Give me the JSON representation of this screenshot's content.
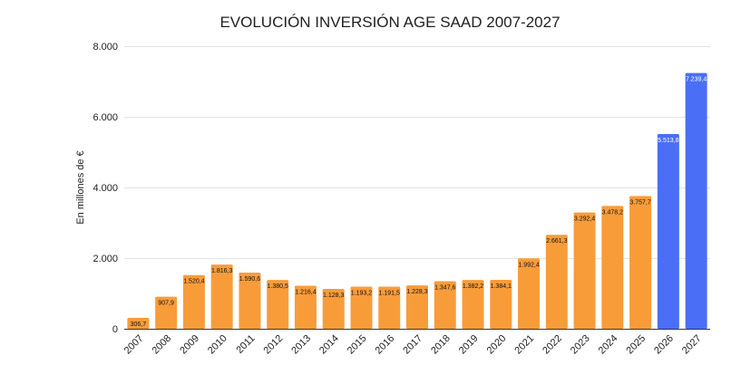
{
  "chart_data": {
    "type": "bar",
    "title": "EVOLUCIÓN INVERSIÓN AGE SAAD 2007-2027",
    "xlabel": "",
    "ylabel": "En millones de €",
    "ylim": [
      0,
      8000
    ],
    "yticks": [
      0,
      2000,
      4000,
      6000,
      8000
    ],
    "ytick_labels": [
      "0",
      "2.000",
      "4.000",
      "6.000",
      "8.000"
    ],
    "grid": true,
    "categories": [
      "2007",
      "2008",
      "2009",
      "2010",
      "2011",
      "2012",
      "2013",
      "2014",
      "2015",
      "2016",
      "2017",
      "2018",
      "2019",
      "2020",
      "2021",
      "2022",
      "2023",
      "2024",
      "2025",
      "2026",
      "2027"
    ],
    "values": [
      306.7,
      907.9,
      1520.4,
      1816.3,
      1590.6,
      1380.5,
      1216.4,
      1128.3,
      1193.2,
      1191.5,
      1228.3,
      1347.6,
      1382.2,
      1384.1,
      1992.4,
      2661.3,
      3292.4,
      3478.2,
      3757.7,
      5513.8,
      7239.4
    ],
    "data_labels": [
      "306,7",
      "907,9",
      "1.520,4",
      "1.816,3",
      "1.590,6",
      "1.380,5",
      "1.216,4",
      "1.128,3",
      "1.193,2",
      "1.191,5",
      "1.228,3",
      "1.347,6",
      "1.382,2",
      "1.384,1",
      "1.992,4",
      "2.661,3",
      "3.292,4",
      "3.478,2",
      "3.757,7",
      "5.513,8",
      "7.239,4"
    ],
    "colors": [
      "#f89c3a",
      "#f89c3a",
      "#f89c3a",
      "#f89c3a",
      "#f89c3a",
      "#f89c3a",
      "#f89c3a",
      "#f89c3a",
      "#f89c3a",
      "#f89c3a",
      "#f89c3a",
      "#f89c3a",
      "#f89c3a",
      "#f89c3a",
      "#f89c3a",
      "#f89c3a",
      "#f89c3a",
      "#f89c3a",
      "#f89c3a",
      "#4a6ef5",
      "#4a6ef5"
    ]
  }
}
